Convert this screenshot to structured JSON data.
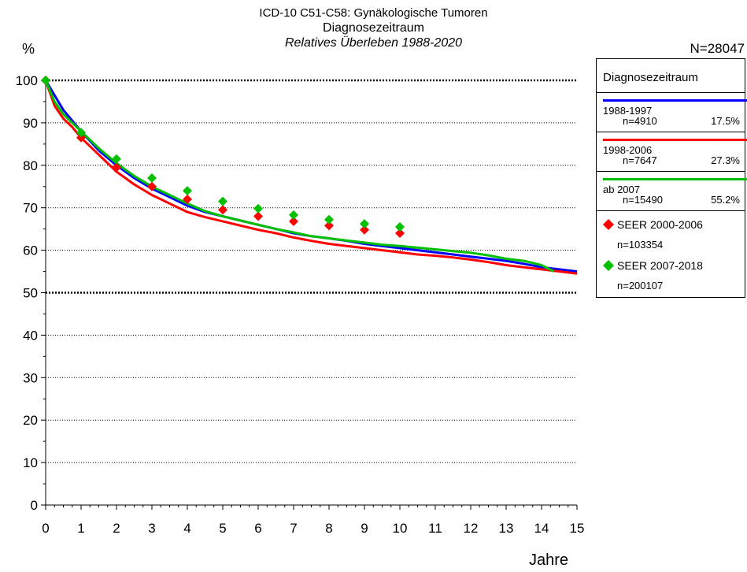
{
  "chart_data": {
    "type": "line",
    "title": "ICD-10 C51-C58: Gynäkologische Tumoren",
    "subtitle": "Diagnosezeitraum",
    "subtitle2": "Relatives Überleben 1988-2020",
    "ylabel": "%",
    "xlabel": "Jahre",
    "n_total": "N=28047",
    "xlim": [
      0,
      15
    ],
    "ylim": [
      0,
      100
    ],
    "x_ticks": [
      0,
      1,
      2,
      3,
      4,
      5,
      6,
      7,
      8,
      9,
      10,
      11,
      12,
      13,
      14,
      15
    ],
    "y_ticks": [
      0,
      10,
      20,
      30,
      40,
      50,
      60,
      70,
      80,
      90,
      100
    ],
    "x_tick_labels": [
      "0",
      "1",
      "2",
      "3",
      "4",
      "5",
      "6",
      "7",
      "8",
      "9",
      "10",
      "11",
      "12",
      "13",
      "14",
      "15"
    ],
    "y_tick_labels": [
      "0",
      "10",
      "20",
      "30",
      "40",
      "50",
      "60",
      "70",
      "80",
      "90",
      "100"
    ],
    "grid": "horizontal dotted",
    "legend_placement": "right",
    "legend_title": "Diagnosezeitraum",
    "series": [
      {
        "name": "1988-1997",
        "n": "n=4910",
        "pct": "17.5%",
        "color": "#0000ff",
        "x": [
          0,
          0.25,
          0.5,
          0.75,
          1,
          1.5,
          2,
          2.5,
          3,
          3.5,
          4,
          4.5,
          5,
          5.5,
          6,
          6.5,
          7,
          7.5,
          8,
          8.5,
          9,
          9.5,
          10,
          10.5,
          11,
          11.5,
          12,
          12.5,
          13,
          13.5,
          14,
          14.5,
          15
        ],
        "y": [
          100,
          96.5,
          93,
          90.5,
          88,
          83.5,
          80,
          77,
          74.5,
          72.5,
          70.5,
          69,
          68,
          67,
          66,
          65,
          64,
          63.3,
          62.8,
          62.2,
          61.5,
          61,
          60.5,
          60,
          59.5,
          59,
          58.5,
          58,
          57.5,
          56.8,
          56,
          55.5,
          55
        ]
      },
      {
        "name": "1998-2006",
        "n": "n=7647",
        "pct": "27.3%",
        "color": "#ff0000",
        "x": [
          0,
          0.25,
          0.5,
          0.75,
          1,
          1.5,
          2,
          2.5,
          3,
          3.5,
          4,
          4.5,
          5,
          5.5,
          6,
          6.5,
          7,
          7.5,
          8,
          8.5,
          9,
          9.5,
          10,
          10.5,
          11,
          11.5,
          12,
          12.5,
          13,
          13.5,
          14,
          14.5,
          15
        ],
        "y": [
          100,
          94,
          91,
          89,
          86.5,
          82.5,
          78.5,
          75.5,
          73,
          71,
          69,
          67.8,
          66.8,
          65.8,
          64.8,
          64,
          63,
          62.2,
          61.5,
          61,
          60.5,
          60,
          59.5,
          59,
          58.7,
          58.3,
          57.8,
          57.2,
          56.5,
          56,
          55.5,
          55,
          54.5
        ]
      },
      {
        "name": "ab 2007",
        "n": "n=15490",
        "pct": "55.2%",
        "color": "#00c000",
        "x": [
          0,
          0.25,
          0.5,
          0.75,
          1,
          1.5,
          2,
          2.5,
          3,
          3.5,
          4,
          4.5,
          5,
          5.5,
          6,
          6.5,
          7,
          7.5,
          8,
          8.5,
          9,
          9.5,
          10,
          10.5,
          11,
          11.5,
          12,
          12.5,
          13,
          13.5,
          14,
          14.35
        ],
        "y": [
          100,
          95,
          92,
          90,
          88,
          84,
          80.5,
          77.5,
          75,
          73,
          71,
          69.2,
          68,
          67,
          66,
          65,
          64.2,
          63.3,
          62.8,
          62.3,
          61.8,
          61.3,
          61,
          60.6,
          60.2,
          59.8,
          59.4,
          58.8,
          58,
          57.5,
          56.5,
          55
        ]
      }
    ],
    "markers": [
      {
        "name": "SEER 2000-2006",
        "n": "n=103354",
        "color": "#ff0000",
        "x": [
          0,
          1,
          2,
          3,
          4,
          5,
          6,
          7,
          8,
          9,
          10
        ],
        "y": [
          100,
          86.5,
          79.5,
          75,
          72,
          69.5,
          68,
          66.8,
          65.8,
          64.8,
          64
        ]
      },
      {
        "name": "SEER 2007-2018",
        "n": "n=200107",
        "color": "#00c000",
        "x": [
          0,
          1,
          2,
          3,
          4,
          5,
          6,
          7,
          8,
          9,
          10
        ],
        "y": [
          100,
          87.7,
          81.5,
          77,
          74,
          71.5,
          69.8,
          68.3,
          67.2,
          66.2,
          65.5
        ]
      }
    ]
  }
}
